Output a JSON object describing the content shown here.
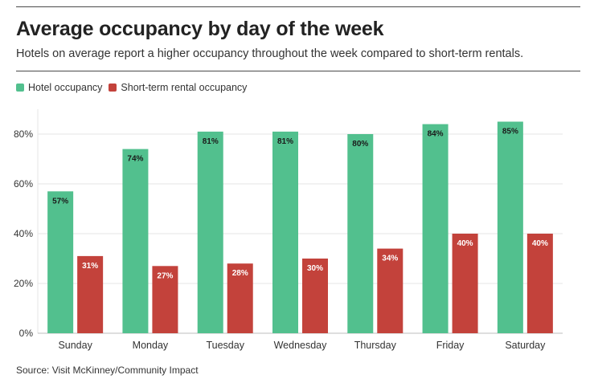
{
  "header": {
    "title": "Average occupancy by day of the week",
    "subtitle": "Hotels on average report a higher occupancy throughout the week compared to short-term rentals."
  },
  "footer": {
    "source": "Source: Visit McKinney/Community Impact"
  },
  "colors": {
    "hotel": "#52c08e",
    "rental": "#c3423b",
    "grid": "#e6e6e6",
    "axis": "#bdbdbd"
  },
  "chart_data": {
    "type": "bar",
    "categories": [
      "Sunday",
      "Monday",
      "Tuesday",
      "Wednesday",
      "Thursday",
      "Friday",
      "Saturday"
    ],
    "series": [
      {
        "name": "Hotel occupancy",
        "values": [
          57,
          74,
          81,
          81,
          80,
          84,
          85
        ],
        "labels": [
          "57%",
          "74%",
          "81%",
          "81%",
          "80%",
          "84%",
          "85%"
        ]
      },
      {
        "name": "Short-term rental occupancy",
        "values": [
          31,
          27,
          28,
          30,
          34,
          40,
          40
        ],
        "labels": [
          "31%",
          "27%",
          "28%",
          "30%",
          "34%",
          "40%",
          "40%"
        ]
      }
    ],
    "yticks": [
      0,
      20,
      40,
      60,
      80
    ],
    "ytick_labels": [
      "0%",
      "20%",
      "40%",
      "60%",
      "80%"
    ],
    "ylim": [
      0,
      90
    ],
    "xlabel": "",
    "ylabel": "",
    "legend": "top-left",
    "grid": true
  }
}
